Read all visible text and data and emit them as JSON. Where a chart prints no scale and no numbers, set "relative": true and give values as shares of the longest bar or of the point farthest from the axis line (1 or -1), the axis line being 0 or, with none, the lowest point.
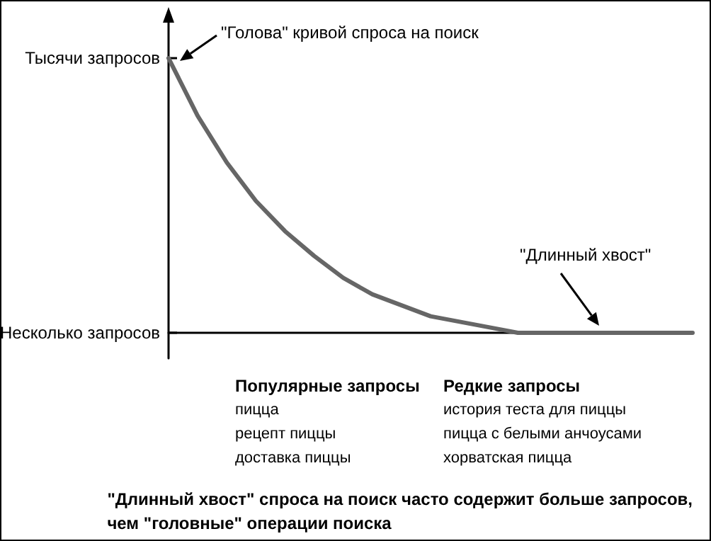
{
  "chart_data": {
    "type": "line",
    "relative": true,
    "categories": [
      null,
      null,
      null,
      null,
      null,
      null,
      null,
      null,
      null,
      null,
      null,
      null,
      null,
      null,
      null,
      null,
      null,
      null,
      null
    ],
    "series": [
      {
        "color": "#666666",
        "values": [
          1.0,
          0.79,
          0.62,
          0.48,
          0.37,
          0.28,
          0.2,
          0.14,
          0.1,
          0.06,
          0.04,
          0.02,
          0.0,
          0.0,
          0.0,
          0.0,
          0.0,
          0.0,
          0.0
        ]
      }
    ],
    "grid": false,
    "marker": "none",
    "line_style": "solid",
    "annotations": [
      "Тысячи запросов",
      "Несколько запросов",
      "\"Голова\" кривой спроса на поиск",
      "\"Длинный хвост\"",
      "Популярные запросы\nпицца\nрецепт пиццы\nдоставка пиццы",
      "Редкие запросы\nистория теста для пиццы\nпицца с белыми анчоусами\nхорватская пицца",
      "\"Длинный хвост\" спроса на поиск часто содержит больше запросов,\nчем \"головные\" операции поиска"
    ]
  }
}
